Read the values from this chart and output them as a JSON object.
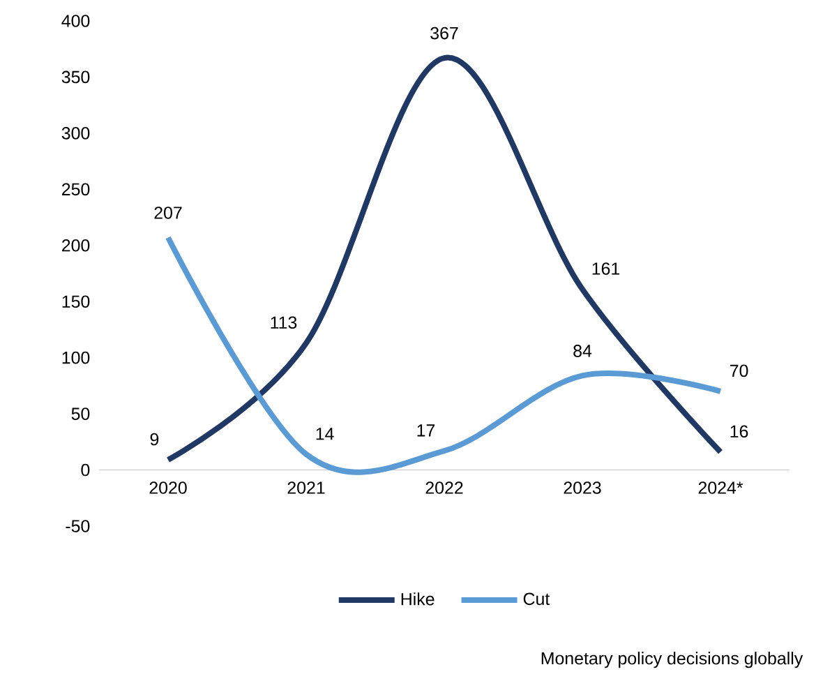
{
  "chart_data": {
    "type": "line",
    "categories": [
      "2020",
      "2021",
      "2022",
      "2023",
      "2024*"
    ],
    "series": [
      {
        "name": "Hike",
        "color": "#1f3864",
        "values": [
          9,
          113,
          367,
          161,
          16
        ]
      },
      {
        "name": "Cut",
        "color": "#5b9bd5",
        "values": [
          207,
          14,
          17,
          84,
          70
        ]
      }
    ],
    "ylim": [
      -50,
      400
    ],
    "yticks": [
      -50,
      0,
      50,
      100,
      150,
      200,
      250,
      300,
      350,
      400
    ],
    "data_labels": true,
    "legend": "bottom",
    "grid": false,
    "marker": "none",
    "line_style": "solid",
    "annotations": [
      "Monetary policy decisions globally"
    ]
  }
}
